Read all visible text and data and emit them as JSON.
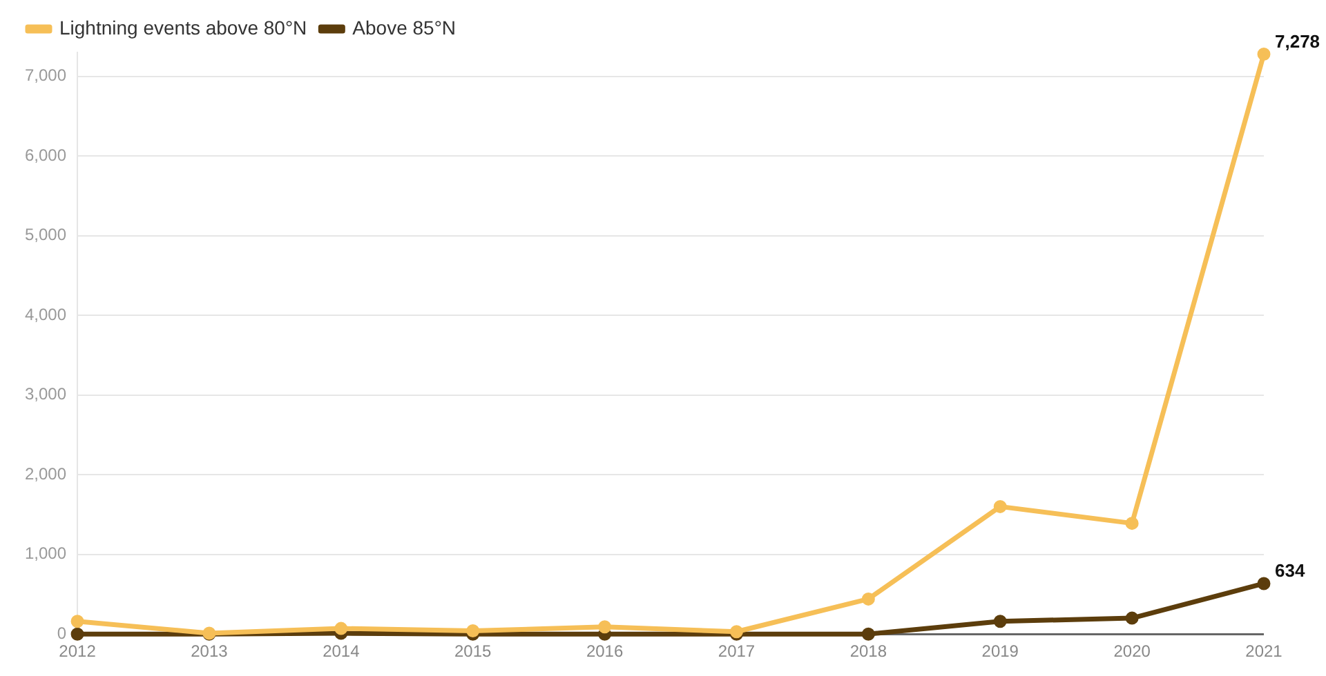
{
  "chart_data": {
    "type": "line",
    "categories": [
      "2012",
      "2013",
      "2014",
      "2015",
      "2016",
      "2017",
      "2018",
      "2019",
      "2020",
      "2021"
    ],
    "series": [
      {
        "name": "Lightning events above 80°N",
        "color": "#f6bf57",
        "values": [
          160,
          10,
          70,
          40,
          90,
          30,
          440,
          1600,
          1390,
          7278
        ],
        "value_labels": [
          null,
          null,
          null,
          null,
          null,
          null,
          null,
          null,
          null,
          "7,278"
        ]
      },
      {
        "name": "Above 85°N",
        "color": "#5c3d0c",
        "values": [
          0,
          0,
          10,
          0,
          0,
          0,
          0,
          160,
          200,
          634
        ],
        "value_labels": [
          null,
          null,
          null,
          null,
          null,
          null,
          null,
          null,
          null,
          "634"
        ]
      }
    ],
    "ylim": [
      0,
      7300
    ],
    "yticks": [
      {
        "value": 0,
        "label": "0"
      },
      {
        "value": 1000,
        "label": "1,000"
      },
      {
        "value": 2000,
        "label": "2,000"
      },
      {
        "value": 3000,
        "label": "3,000"
      },
      {
        "value": 4000,
        "label": "4,000"
      },
      {
        "value": 5000,
        "label": "5,000"
      },
      {
        "value": 6000,
        "label": "6,000"
      },
      {
        "value": 7000,
        "label": "7,000"
      }
    ],
    "grid": "y",
    "legend": "top left",
    "marker": "circle",
    "line_style": "solid"
  }
}
